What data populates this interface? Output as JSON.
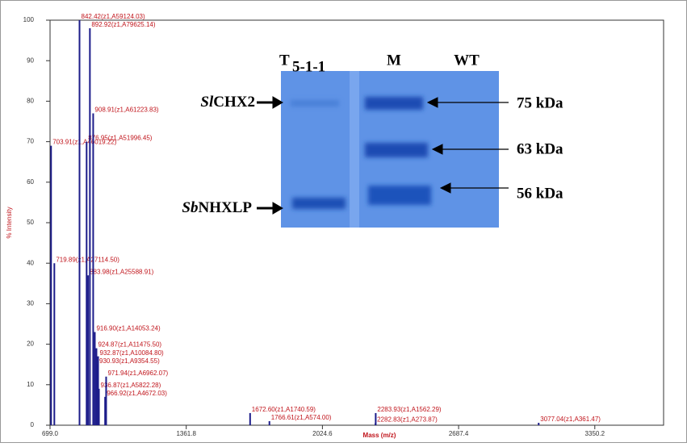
{
  "chart_data": {
    "type": "spectrum",
    "x_label": "Mass (m/z)",
    "y_label": "% Intensity",
    "xlim": [
      699.0,
      3685
    ],
    "ylim": [
      0,
      100
    ],
    "xticks": [
      {
        "value": 699.0,
        "label": "699.0"
      },
      {
        "value": 1361.8,
        "label": "1361.8"
      },
      {
        "value": 2024.6,
        "label": "2024.6"
      },
      {
        "value": 2687.4,
        "label": "2687.4"
      },
      {
        "value": 3350.2,
        "label": "3350.2"
      }
    ],
    "yticks": [
      0,
      10,
      20,
      30,
      40,
      50,
      60,
      70,
      80,
      90,
      100
    ],
    "color": "#1c1c8a",
    "label_color": "#c0141b",
    "x": [
      703.91,
      719.89,
      842.42,
      876.95,
      883.98,
      892.92,
      908.91,
      916.9,
      924.87,
      930.93,
      932.87,
      936.87,
      966.92,
      971.94,
      1672.6,
      1766.61,
      2282.83,
      2283.93,
      3077.04
    ],
    "values": [
      69,
      40,
      100,
      70,
      37,
      98,
      77,
      23,
      19,
      15,
      17,
      9,
      7,
      12,
      3,
      1,
      0.5,
      3,
      0.6
    ],
    "value_labels": [
      "703.91(z1,A46019.22)",
      "719.89(z1,A27114.50)",
      "842.42(z1,A59124.03)",
      "876.95(z1,A51996.45)",
      "883.98(z1,A25588.91)",
      "892.92(z1,A79625.14)",
      "908.91(z1,A61223.83)",
      "916.90(z1,A14053.24)",
      "924.87(z1,A11475.50)",
      "930.93(z1,A9354.55)",
      "932.87(z1,A10084.80)",
      "936.87(z1,A5822.28)",
      "966.92(z1,A4672.03)",
      "971.94(z1,A6962.07)",
      "1672.60(z1,A1740.59)",
      "1766.61(z1,A574.00)",
      "2282.83(z1,A273.87)",
      "2283.93(z1,A1562.29)",
      "3077.04(z1,A361.47)"
    ]
  },
  "inset": {
    "lanes": [
      "T",
      "M",
      "WT"
    ],
    "lane_sub": "5-1-1",
    "left_labels": [
      {
        "italic": "Sl",
        "rest": "CHX2"
      },
      {
        "italic": "Sb",
        "rest": "NHXLP"
      }
    ],
    "markers": [
      "75 kDa",
      "63 kDa",
      "56 kDa"
    ]
  }
}
